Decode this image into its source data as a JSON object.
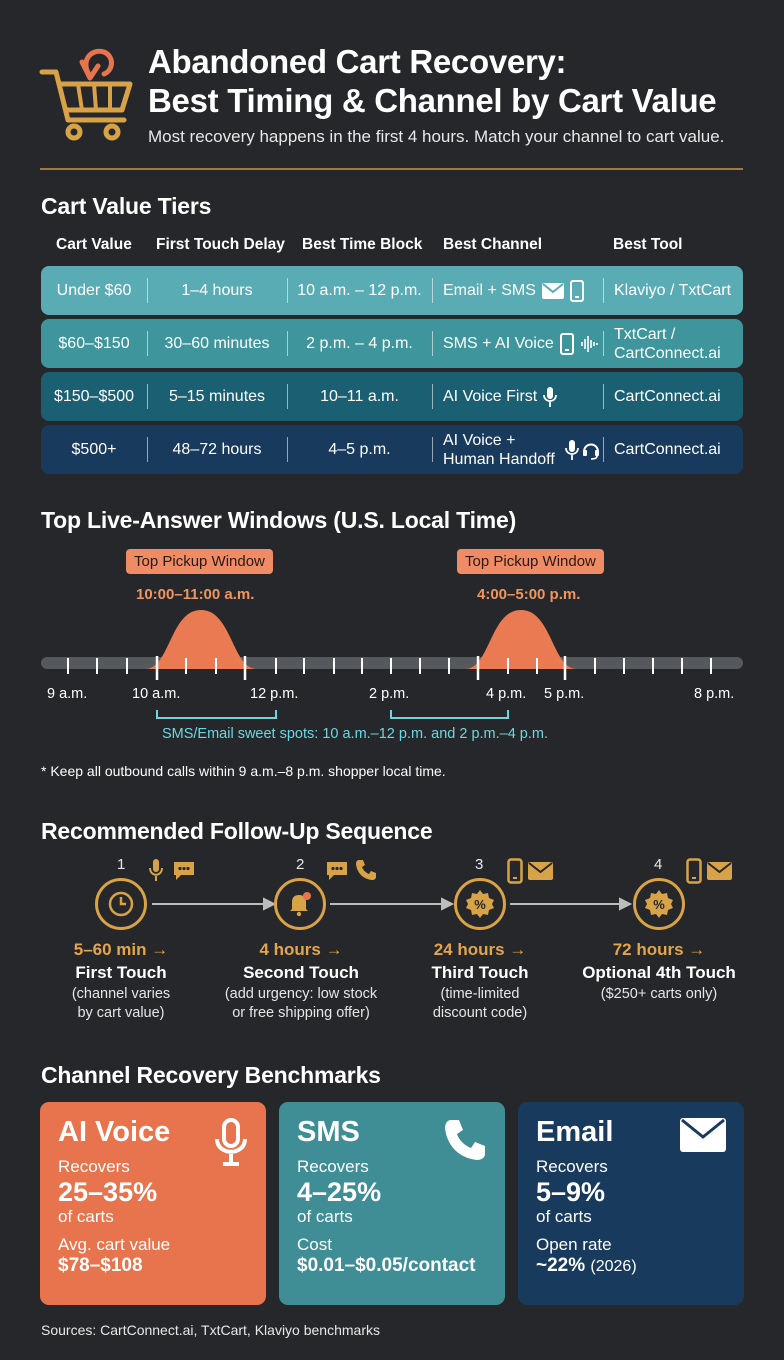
{
  "header": {
    "title_line1": "Abandoned Cart Recovery:",
    "title_line2": "Best Timing & Channel by Cart Value",
    "subtitle": "Most recovery happens in the first 4 hours. Match your channel to cart value."
  },
  "tiers": {
    "title": "Cart Value Tiers",
    "columns": [
      "Cart Value",
      "First Touch Delay",
      "Best Time Block",
      "Best Channel",
      "Best Tool"
    ],
    "rows": [
      {
        "cart_value": "Under $60",
        "delay": "1–4 hours",
        "block": "10 a.m. – 12 p.m.",
        "channel": "Email + SMS",
        "channel_icons": [
          "mail-icon",
          "phone-icon"
        ],
        "tool": "Klaviyo / TxtCart"
      },
      {
        "cart_value": "$60–$150",
        "delay": "30–60 minutes",
        "block": "2 p.m. – 4 p.m.",
        "channel": "SMS + AI Voice",
        "channel_icons": [
          "phone-icon",
          "waveform-icon"
        ],
        "tool": "TxtCart / CartConnect.ai"
      },
      {
        "cart_value": "$150–$500",
        "delay": "5–15 minutes",
        "block": "10–11 a.m.",
        "channel": "AI Voice First",
        "channel_icons": [
          "microphone-icon"
        ],
        "tool": "CartConnect.ai"
      },
      {
        "cart_value": "$500+",
        "delay": "48–72 hours",
        "block": "4–5 p.m.",
        "channel": "AI Voice + Human Handoff",
        "channel_icons": [
          "microphone-icon",
          "headset-icon"
        ],
        "tool": "CartConnect.ai"
      }
    ]
  },
  "windows": {
    "title": "Top Live-Answer Windows (U.S. Local Time)",
    "peaks": [
      {
        "label": "Top Pickup Window",
        "time": "10:00–11:00 a.m."
      },
      {
        "label": "Top Pickup Window",
        "time": "4:00–5:00 p.m."
      }
    ],
    "ticks": [
      "9 a.m.",
      "10 a.m.",
      "12 p.m.",
      "2 p.m.",
      "4 p.m.",
      "5 p.m.",
      "8 p.m."
    ],
    "sweet_spots": "SMS/Email sweet spots: 10 a.m.–12 p.m. and 2 p.m.–4 p.m.",
    "footnote": "* Keep all outbound calls within 9 a.m.–8 p.m. shopper local time."
  },
  "sequence": {
    "title": "Recommended Follow-Up Sequence",
    "steps": [
      {
        "num": "1",
        "time": "5–60 min →",
        "name": "First Touch",
        "desc1": "(channel varies",
        "desc2": "by cart value)",
        "icon": "clock-icon",
        "channel_icons": [
          "microphone-icon",
          "chat-icon"
        ]
      },
      {
        "num": "2",
        "time": "4 hours →",
        "name": "Second Touch",
        "desc1": "(add urgency: low stock",
        "desc2": "or free shipping offer)",
        "icon": "bell-icon",
        "channel_icons": [
          "chat-icon",
          "phone-icon"
        ]
      },
      {
        "num": "3",
        "time": "24 hours →",
        "name": "Third Touch",
        "desc1": "(time-limited",
        "desc2": "discount code)",
        "icon": "discount-icon",
        "channel_icons": [
          "mobile-icon",
          "mail-icon"
        ]
      },
      {
        "num": "4",
        "time": "72 hours →",
        "name": "Optional 4th Touch",
        "desc1": "($250+ carts only)",
        "desc2": "",
        "icon": "discount-icon",
        "channel_icons": [
          "mobile-icon",
          "mail-icon"
        ]
      }
    ]
  },
  "benchmarks": {
    "title": "Channel Recovery Benchmarks",
    "cards": [
      {
        "name": "AI Voice",
        "recovers_label": "Recovers",
        "rate": "25–35%",
        "unit": "of carts",
        "metric_label": "Avg. cart value",
        "metric_value": "$78–$108",
        "metric_note": "",
        "icon": "microphone-icon",
        "color": "#e8744e"
      },
      {
        "name": "SMS",
        "recovers_label": "Recovers",
        "rate": "4–25%",
        "unit": "of carts",
        "metric_label": "Cost",
        "metric_value": "$0.01–$0.05/contact",
        "metric_note": "",
        "icon": "phone-icon",
        "color": "#3f8e95"
      },
      {
        "name": "Email",
        "recovers_label": "Recovers",
        "rate": "5–9%",
        "unit": "of carts",
        "metric_label": "Open rate",
        "metric_value": "~22%",
        "metric_note": "(2026)",
        "icon": "mail-icon",
        "color": "#183a5c"
      }
    ]
  },
  "sources": "Sources: CartConnect.ai, TxtCart, Klaviyo benchmarks",
  "colors": {
    "accent_gold": "#d8a347",
    "accent_orange": "#ef8c66",
    "teal_text": "#6ed6df"
  }
}
